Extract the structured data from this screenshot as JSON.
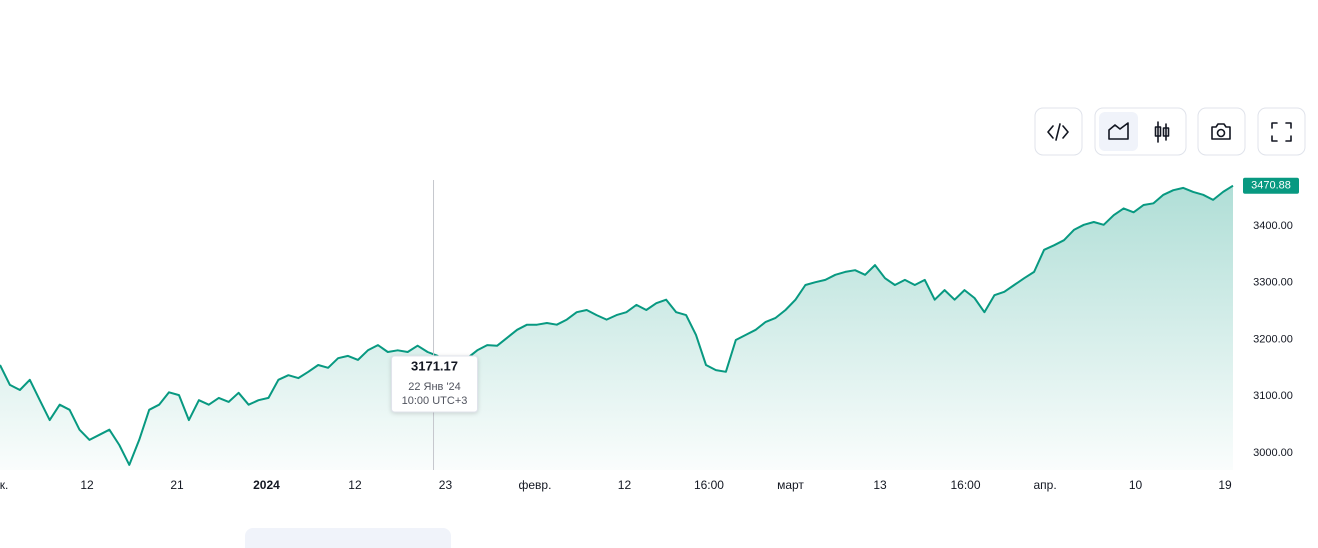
{
  "chart_data": {
    "type": "area",
    "color": "#089981",
    "values": [
      3155,
      3120,
      3111,
      3129,
      3093,
      3058,
      3085,
      3076,
      3041,
      3023,
      3032,
      3041,
      3014,
      2979,
      3023,
      3076,
      3085,
      3107,
      3102,
      3058,
      3093,
      3085,
      3097,
      3090,
      3106,
      3085,
      3093,
      3097,
      3129,
      3137,
      3132,
      3143,
      3155,
      3150,
      3167,
      3171,
      3164,
      3181,
      3190,
      3178,
      3181,
      3178,
      3189,
      3178,
      3171.17,
      3160,
      3164,
      3167,
      3181,
      3190,
      3189,
      3203,
      3217,
      3226,
      3226,
      3229,
      3226,
      3235,
      3248,
      3252,
      3243,
      3235,
      3243,
      3248,
      3261,
      3252,
      3264,
      3270,
      3248,
      3243,
      3208,
      3155,
      3146,
      3143,
      3199,
      3208,
      3217,
      3231,
      3238,
      3252,
      3270,
      3296,
      3301,
      3305,
      3314,
      3319,
      3322,
      3314,
      3331,
      3308,
      3296,
      3305,
      3296,
      3305,
      3270,
      3287,
      3270,
      3287,
      3273,
      3248,
      3278,
      3284,
      3296,
      3308,
      3319,
      3358,
      3366,
      3375,
      3393,
      3402,
      3407,
      3402,
      3419,
      3431,
      3424,
      3437,
      3440,
      3455,
      3463,
      3467,
      3460,
      3455,
      3446,
      3460,
      3470.88
    ],
    "xlim": [
      0,
      124
    ],
    "xticks": [
      {
        "value": 0.4,
        "label": "к."
      },
      {
        "value": 8.75,
        "label": "12"
      },
      {
        "value": 17.8,
        "label": "21"
      },
      {
        "value": 26.8,
        "label": "2024"
      },
      {
        "value": 35.7,
        "label": "12"
      },
      {
        "value": 44.8,
        "label": "23"
      },
      {
        "value": 53.8,
        "label": "февр."
      },
      {
        "value": 62.8,
        "label": "12"
      },
      {
        "value": 71.3,
        "label": "16:00"
      },
      {
        "value": 79.5,
        "label": "март"
      },
      {
        "value": 88.5,
        "label": "13"
      },
      {
        "value": 97.1,
        "label": "16:00"
      },
      {
        "value": 105.1,
        "label": "апр."
      },
      {
        "value": 114.2,
        "label": "10"
      },
      {
        "value": 123.2,
        "label": "19"
      }
    ],
    "ylim": [
      2970,
      3481
    ],
    "yticks": [
      {
        "value": 3000,
        "label": "3000.00"
      },
      {
        "value": 3100,
        "label": "3100.00"
      },
      {
        "value": 3200,
        "label": "3200.00"
      },
      {
        "value": 3300,
        "label": "3300.00"
      },
      {
        "value": 3400,
        "label": "3400.00"
      }
    ],
    "tooltip": {
      "index": 44,
      "date": "22 Янв '24",
      "time": "10:00 UTC+3"
    },
    "last_index": 124
  }
}
